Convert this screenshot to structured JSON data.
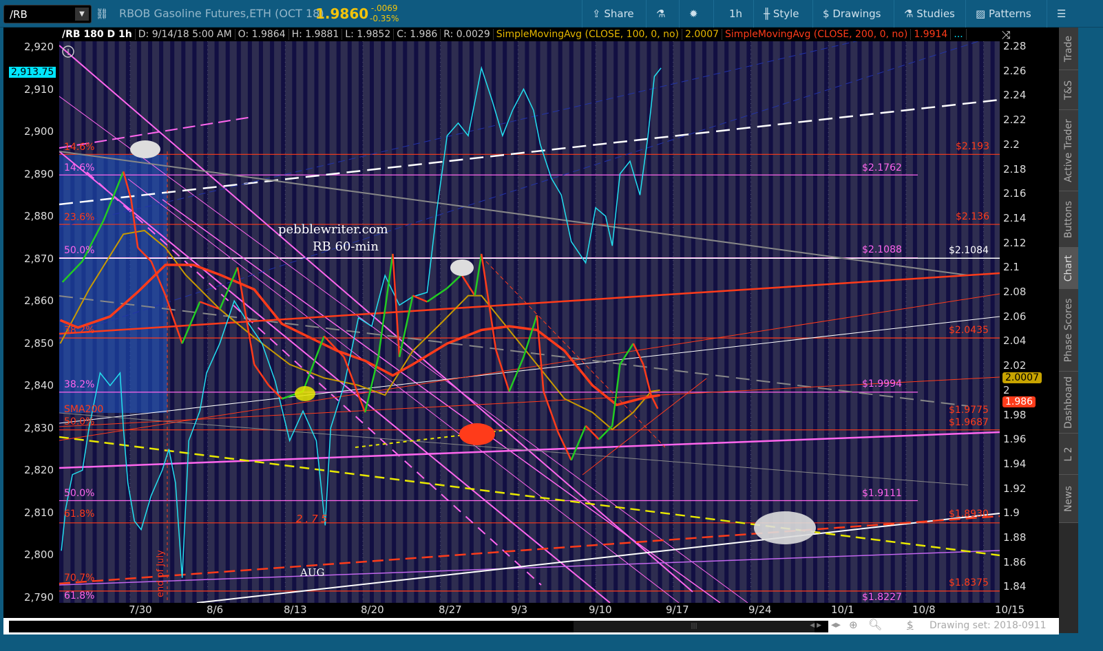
{
  "toolbar": {
    "symbol": "/RB",
    "title": "RBOB Gasoline Futures,ETH (OCT 18)",
    "last": "1.9860",
    "change": "-.0069",
    "change_pct": "-0.35%",
    "share": "Share",
    "interval": "1h",
    "style": "Style",
    "drawings": "Drawings",
    "studies": "Studies",
    "patterns": "Patterns"
  },
  "info": {
    "symbol": "/RB 180 D 1h",
    "date": "D: 9/14/18 5:00 AM",
    "open": "O: 1.9864",
    "high": "H: 1.9881",
    "low": "L: 1.9852",
    "close": "C: 1.986",
    "range": "R: 0.0029",
    "sma100": "SimpleMovingAvg (CLOSE, 100, 0, no)",
    "sma100_val": "2.0007",
    "sma200": "SimpleMovingAvg (CLOSE, 200, 0, no)",
    "sma200_val": "1.9914",
    "more": "..."
  },
  "left_axis": {
    "ticks": [
      "2,920",
      "2,910",
      "2,900",
      "2,890",
      "2,880",
      "2,870",
      "2,860",
      "2,850",
      "2,840",
      "2,830",
      "2,820",
      "2,810",
      "2,800",
      "2,790"
    ],
    "badge": "2,913.75"
  },
  "right_axis": {
    "ticks": [
      "2.28",
      "2.26",
      "2.24",
      "2.22",
      "2.2",
      "2.18",
      "2.16",
      "2.14",
      "2.12",
      "2.1",
      "2.08",
      "2.06",
      "2.04",
      "2.02",
      "2",
      "1.98",
      "1.96",
      "1.94",
      "1.92",
      "1.9",
      "1.88",
      "1.86",
      "1.84"
    ],
    "sma100_badge": "2.0007",
    "last_badge": "1.986"
  },
  "date_axis": [
    "7/30",
    "8/6",
    "8/13",
    "8/20",
    "8/27",
    "9/3",
    "9/10",
    "9/17",
    "9/24",
    "10/1",
    "10/8",
    "10/15"
  ],
  "sidebar": [
    "Trade",
    "T&S",
    "Active Trader",
    "Buttons",
    "Chart",
    "Phase Scores",
    "Dashboard",
    "L 2",
    "News"
  ],
  "bottom": {
    "drawing_set": "Drawing set: 2018-0911"
  },
  "annotations": {
    "site": "pebblewriter.com",
    "chart_name": "RB 60-min",
    "level_275": "2.75",
    "aug": "AUG",
    "end_of_july": "end of July"
  },
  "fib_left": [
    {
      "t": "14.6%",
      "c": "#ff3b1a"
    },
    {
      "t": "14.6%",
      "c": "#ff66ee"
    },
    {
      "t": "23.6%",
      "c": "#ff3b1a"
    },
    {
      "t": "50.0%",
      "c": "#ff66ee"
    },
    {
      "t": "38.2%",
      "c": "#ff3b1a"
    },
    {
      "t": "38.2%",
      "c": "#ff66ee"
    },
    {
      "t": "SMA200",
      "c": "#ff3b1a"
    },
    {
      "t": "50.0%",
      "c": "#ff3b1a"
    },
    {
      "t": "50.0%",
      "c": "#ff66ee"
    },
    {
      "t": "61.8%",
      "c": "#ff3b1a"
    },
    {
      "t": "70.7%",
      "c": "#ff3b1a"
    },
    {
      "t": "61.8%",
      "c": "#ff66ee"
    }
  ],
  "fib_right": [
    {
      "t": "$2.193",
      "c": "#ff3b1a"
    },
    {
      "t": "$2.1762",
      "c": "#ff66ee"
    },
    {
      "t": "$2.136",
      "c": "#ff3b1a"
    },
    {
      "t": "$2.1088",
      "c": "#ff66ee"
    },
    {
      "t": "$2.1084",
      "c": "#ffffff"
    },
    {
      "t": "$2.0435",
      "c": "#ff3b1a"
    },
    {
      "t": "$1.9994",
      "c": "#ff66ee"
    },
    {
      "t": "$1.9775",
      "c": "#ff3b1a"
    },
    {
      "t": "$1.9687",
      "c": "#ff3b1a"
    },
    {
      "t": "$1.9111",
      "c": "#ff66ee"
    },
    {
      "t": "$1.8930",
      "c": "#ff3b1a"
    },
    {
      "t": "$1.8375",
      "c": "#ff3b1a"
    },
    {
      "t": "$1.8227",
      "c": "#ff66ee"
    }
  ],
  "chart_data": {
    "type": "line",
    "x_unit": "days since 7/30",
    "right_ylim": [
      1.835,
      2.285
    ],
    "left_ylim": [
      2789,
      2921
    ],
    "rb_price": [
      [
        -7.1,
        2.089
      ],
      [
        -5.3,
        2.106
      ],
      [
        -3.4,
        2.139
      ],
      [
        -1.6,
        2.179
      ],
      [
        -0.9,
        2.156
      ],
      [
        -0.3,
        2.117
      ],
      [
        0.9,
        2.106
      ],
      [
        2.2,
        2.078
      ],
      [
        3.7,
        2.039
      ],
      [
        5.3,
        2.073
      ],
      [
        7.1,
        2.067
      ],
      [
        8.7,
        2.101
      ],
      [
        10.2,
        2.022
      ],
      [
        11.5,
        2.005
      ],
      [
        12.7,
        1.994
      ],
      [
        14.6,
        2.0
      ],
      [
        16.5,
        2.045
      ],
      [
        18.3,
        2.028
      ],
      [
        20.2,
        1.983
      ],
      [
        21.4,
        2.028
      ],
      [
        22.7,
        2.112
      ],
      [
        23.3,
        2.028
      ],
      [
        24.5,
        2.078
      ],
      [
        25.8,
        2.073
      ],
      [
        27.6,
        2.084
      ],
      [
        28.9,
        2.095
      ],
      [
        30.1,
        2.078
      ],
      [
        30.7,
        2.112
      ],
      [
        32.0,
        2.034
      ],
      [
        33.2,
        2.0
      ],
      [
        34.5,
        2.028
      ],
      [
        35.7,
        2.062
      ],
      [
        36.3,
        2.0
      ],
      [
        37.6,
        1.967
      ],
      [
        38.8,
        1.944
      ],
      [
        40.1,
        1.972
      ],
      [
        41.3,
        1.961
      ],
      [
        42.5,
        1.972
      ],
      [
        43.2,
        2.022
      ],
      [
        44.4,
        2.039
      ],
      [
        45.3,
        2.022
      ],
      [
        46.0,
        1.997
      ],
      [
        46.6,
        1.986
      ]
    ],
    "spx": [
      [
        -7.2,
        2801
      ],
      [
        -6.8,
        2811
      ],
      [
        -6.2,
        2819
      ],
      [
        -5.3,
        2820
      ],
      [
        -4.7,
        2830
      ],
      [
        -3.7,
        2843
      ],
      [
        -2.8,
        2840
      ],
      [
        -1.9,
        2843
      ],
      [
        -1.6,
        2830
      ],
      [
        -1.2,
        2817
      ],
      [
        -0.6,
        2808
      ],
      [
        0,
        2806
      ],
      [
        0.9,
        2814
      ],
      [
        1.9,
        2820
      ],
      [
        2.5,
        2825
      ],
      [
        3.1,
        2817
      ],
      [
        3.7,
        2794.6
      ],
      [
        4.3,
        2827
      ],
      [
        5.3,
        2834
      ],
      [
        5.9,
        2843
      ],
      [
        7.1,
        2850
      ],
      [
        8.4,
        2860
      ],
      [
        9.6,
        2855
      ],
      [
        10.9,
        2850
      ],
      [
        12.1,
        2841
      ],
      [
        13.4,
        2827
      ],
      [
        14.6,
        2834
      ],
      [
        15.8,
        2827
      ],
      [
        16.6,
        2807
      ],
      [
        17.1,
        2830
      ],
      [
        18.3,
        2840
      ],
      [
        19.6,
        2856
      ],
      [
        20.8,
        2854
      ],
      [
        22.0,
        2866
      ],
      [
        23.3,
        2859
      ],
      [
        24.5,
        2861
      ],
      [
        25.8,
        2862
      ],
      [
        26.7,
        2882
      ],
      [
        27.6,
        2899
      ],
      [
        28.6,
        2902
      ],
      [
        29.5,
        2899
      ],
      [
        30.7,
        2915
      ],
      [
        31.7,
        2907
      ],
      [
        32.6,
        2899
      ],
      [
        33.5,
        2905
      ],
      [
        34.5,
        2910
      ],
      [
        35.4,
        2905
      ],
      [
        36.0,
        2897
      ],
      [
        37.0,
        2889
      ],
      [
        37.9,
        2885
      ],
      [
        38.8,
        2874
      ],
      [
        40.1,
        2869
      ],
      [
        41.0,
        2882
      ],
      [
        41.9,
        2880
      ],
      [
        42.5,
        2873
      ],
      [
        43.2,
        2890
      ],
      [
        44.1,
        2893
      ],
      [
        45.0,
        2885
      ],
      [
        45.7,
        2898.5
      ],
      [
        46.3,
        2913
      ],
      [
        46.9,
        2915
      ]
    ],
    "sma100": [
      [
        -7.3,
        2.039
      ],
      [
        -4.7,
        2.083
      ],
      [
        -1.6,
        2.128
      ],
      [
        0.3,
        2.131
      ],
      [
        2.2,
        2.117
      ],
      [
        4.0,
        2.095
      ],
      [
        7.1,
        2.067
      ],
      [
        10.2,
        2.044
      ],
      [
        13.4,
        2.022
      ],
      [
        16.5,
        2.011
      ],
      [
        19.6,
        2.005
      ],
      [
        22.0,
        1.997
      ],
      [
        24.5,
        2.033
      ],
      [
        27.0,
        2.055
      ],
      [
        29.5,
        2.078
      ],
      [
        30.7,
        2.078
      ],
      [
        33.2,
        2.05
      ],
      [
        35.7,
        2.022
      ],
      [
        38.2,
        1.994
      ],
      [
        40.7,
        1.983
      ],
      [
        42.5,
        1.969
      ],
      [
        44.4,
        1.983
      ],
      [
        46.0,
        2.0
      ],
      [
        46.8,
        2.001
      ]
    ],
    "sma200": [
      [
        -7.3,
        2.058
      ],
      [
        -5.7,
        2.052
      ],
      [
        -2.8,
        2.061
      ],
      [
        -0.3,
        2.081
      ],
      [
        2.2,
        2.103
      ],
      [
        4.7,
        2.103
      ],
      [
        7.1,
        2.095
      ],
      [
        10.2,
        2.083
      ],
      [
        12.7,
        2.055
      ],
      [
        15.2,
        2.044
      ],
      [
        17.7,
        2.033
      ],
      [
        20.2,
        2.025
      ],
      [
        22.7,
        2.013
      ],
      [
        24.5,
        2.022
      ],
      [
        27.6,
        2.039
      ],
      [
        30.7,
        2.05
      ],
      [
        33.2,
        2.053
      ],
      [
        35.7,
        2.05
      ],
      [
        38.2,
        2.033
      ],
      [
        40.7,
        2.005
      ],
      [
        42.9,
        1.989
      ],
      [
        45.0,
        1.994
      ],
      [
        46.8,
        1.997
      ]
    ],
    "red_levels": [
      2.193,
      2.136,
      2.0435,
      1.9687,
      1.893,
      1.8375
    ],
    "magenta_levels": [
      2.1762,
      2.1088,
      1.9994,
      1.9111,
      1.8227
    ],
    "white_level": 2.1084
  }
}
